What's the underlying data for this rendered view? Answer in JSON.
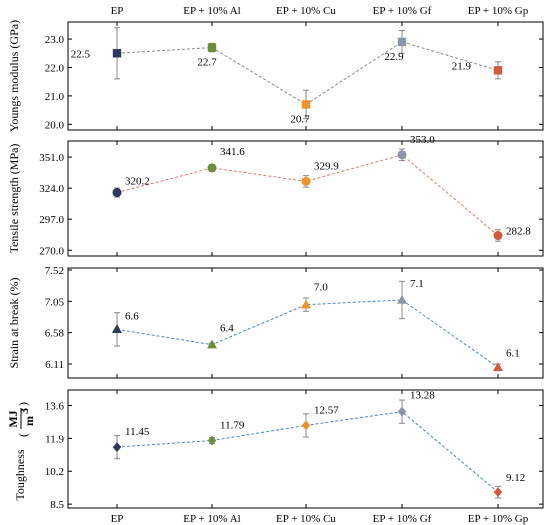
{
  "chart_data": [
    {
      "type": "line",
      "name": "youngs",
      "categories": [
        "EP",
        "EP + 10% Al",
        "EP + 10% Cu",
        "EP + 10% Gf",
        "EP + 10% Gp"
      ],
      "values": [
        22.5,
        22.7,
        20.7,
        22.9,
        21.9
      ],
      "errors": [
        0.9,
        0.15,
        0.5,
        0.4,
        0.3
      ],
      "value_labels": [
        "22.5",
        "22.7",
        "20.7",
        "22.9",
        "21.9"
      ],
      "ylabel": "Youngs modulus (GPa)",
      "ylim": [
        19.8,
        23.6
      ],
      "yticks": [
        20.0,
        21.0,
        22.0,
        23.0
      ],
      "ytick_labels": [
        "20.0",
        "21.0",
        "22.0",
        "23.0"
      ],
      "line_color": "#8a8a8a",
      "marker": "square",
      "marker_colors": [
        "#2b3a5a",
        "#6b8e3a",
        "#f0922b",
        "#8a97aa",
        "#cf5a3c"
      ],
      "show_top_categories": true,
      "show_bottom_categories": false
    },
    {
      "type": "line",
      "name": "tensile",
      "categories": [
        "EP",
        "EP + 10% Al",
        "EP + 10% Cu",
        "EP + 10% Gf",
        "EP + 10% Gp"
      ],
      "values": [
        320.2,
        341.6,
        329.9,
        353.0,
        282.8
      ],
      "errors": [
        4,
        3,
        5,
        5,
        5
      ],
      "value_labels": [
        "320.2",
        "341.6",
        "329.9",
        "353.0",
        "282.8"
      ],
      "ylabel": "Tensile strength (MPa)",
      "ylim": [
        265,
        365
      ],
      "yticks": [
        270.0,
        297.0,
        324.0,
        351.0
      ],
      "ytick_labels": [
        "270.0",
        "297.0",
        "324.0",
        "351.0"
      ],
      "line_color": "#e57a6a",
      "marker": "circle",
      "marker_colors": [
        "#2b3a5a",
        "#6b8e3a",
        "#f0922b",
        "#8a97aa",
        "#cf5a3c"
      ],
      "show_top_categories": false,
      "show_bottom_categories": false
    },
    {
      "type": "line",
      "name": "strain",
      "categories": [
        "EP",
        "EP + 10% Al",
        "EP + 10% Cu",
        "EP + 10% Gf",
        "EP + 10% Gp"
      ],
      "values": [
        6.63,
        6.4,
        7.0,
        7.07,
        6.06
      ],
      "errors": [
        0.25,
        0.02,
        0.1,
        0.28,
        0.05
      ],
      "value_labels": [
        "6.6",
        "6.4",
        "7.0",
        "7.1",
        "6.1"
      ],
      "ylabel": "Strain at break (%)",
      "ylim": [
        5.9,
        7.55
      ],
      "yticks": [
        6.11,
        6.58,
        7.05,
        7.52
      ],
      "ytick_labels": [
        "6.11",
        "6.58",
        "7.05",
        "7.52"
      ],
      "line_color": "#4a86c8",
      "marker": "triangle",
      "marker_colors": [
        "#2b3a5a",
        "#6b8e3a",
        "#f0922b",
        "#8a97aa",
        "#cf5a3c"
      ],
      "show_top_categories": false,
      "show_bottom_categories": false
    },
    {
      "type": "line",
      "name": "toughness",
      "categories": [
        "EP",
        "EP + 10% Al",
        "EP + 10% Cu",
        "EP + 10% Gf",
        "EP + 10% Gp"
      ],
      "values": [
        11.45,
        11.79,
        12.57,
        13.28,
        9.12
      ],
      "errors": [
        0.6,
        0.15,
        0.6,
        0.6,
        0.3
      ],
      "value_labels": [
        "11.45",
        "11.79",
        "12.57",
        "13.28",
        "9.12"
      ],
      "ylabel": "Toughness",
      "ylabel_unit_num": "MJ",
      "ylabel_unit_den": "m",
      "ylabel_unit_exp": "3",
      "ylim": [
        8.3,
        14.4
      ],
      "yticks": [
        8.5,
        10.2,
        11.9,
        13.6
      ],
      "ytick_labels": [
        "8.5",
        "10.2",
        "11.9",
        "13.6"
      ],
      "line_color": "#4a86c8",
      "marker": "diamond",
      "marker_colors": [
        "#2b3a5a",
        "#6b8e3a",
        "#f0922b",
        "#8a97aa",
        "#cf5a3c"
      ],
      "show_top_categories": false,
      "show_bottom_categories": true
    }
  ]
}
